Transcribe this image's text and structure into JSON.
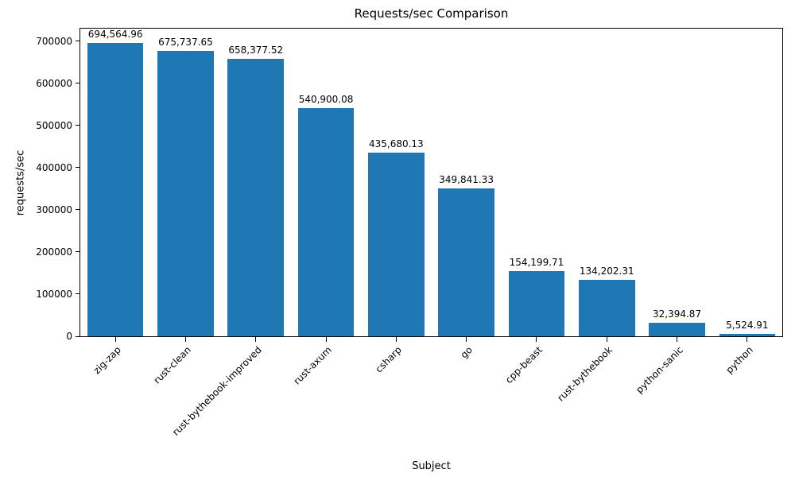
{
  "chart_data": {
    "type": "bar",
    "title": "Requests/sec Comparison",
    "xlabel": "Subject",
    "ylabel": "requests/sec",
    "categories": [
      "zig-zap",
      "rust-clean",
      "rust-bythebook-improved",
      "rust-axum",
      "csharp",
      "go",
      "cpp-beast",
      "rust-bythebook",
      "python-sanic",
      "python"
    ],
    "values": [
      694564.96,
      675737.65,
      658377.52,
      540900.08,
      435680.13,
      349841.33,
      154199.71,
      134202.31,
      32394.87,
      5524.91
    ],
    "value_labels": [
      "694,564.96",
      "675,737.65",
      "658,377.52",
      "540,900.08",
      "435,680.13",
      "349,841.33",
      "154,199.71",
      "134,202.31",
      "32,394.87",
      "5,524.91"
    ],
    "yticks": [
      0,
      100000,
      200000,
      300000,
      400000,
      500000,
      600000,
      700000
    ],
    "ylim": [
      0,
      729293
    ],
    "bar_color": "#1f77b4",
    "bar_width_fraction": 0.8,
    "grid": false,
    "legend": null
  }
}
